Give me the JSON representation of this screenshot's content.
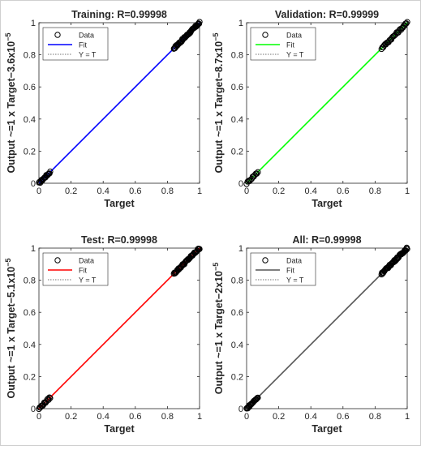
{
  "chart_data": [
    {
      "type": "scatter",
      "title": "Training: R=0.99998",
      "xlabel": "Target",
      "ylabel": "Output ~=1 x Target",
      "ylabel_offset": "−3.6",
      "ylabel_exp": "x10",
      "ylabel_exp_sup": "−5",
      "xlim": [
        0,
        1
      ],
      "ylim": [
        0,
        1
      ],
      "xticks": [
        "0",
        "0.2",
        "0.4",
        "0.6",
        "0.8",
        "1"
      ],
      "yticks": [
        "0",
        "0.2",
        "0.4",
        "0.6",
        "0.8",
        "1"
      ],
      "fit_color": "#0000ff",
      "legend": {
        "position": "top-left",
        "entries": [
          "Data",
          "Fit",
          "Y = T"
        ]
      },
      "fit_line": {
        "slope": 1,
        "intercept": -3.6e-05
      },
      "clusters": [
        {
          "x_range": [
            0,
            0.07
          ],
          "count": 18
        },
        {
          "x_range": [
            0.84,
            1
          ],
          "count": 50
        }
      ]
    },
    {
      "type": "scatter",
      "title": "Validation: R=0.99999",
      "xlabel": "Target",
      "ylabel": "Output ~=1 x Target",
      "ylabel_offset": "−8.7",
      "ylabel_exp": "x10",
      "ylabel_exp_sup": "−5",
      "xlim": [
        0,
        1
      ],
      "ylim": [
        0,
        1
      ],
      "xticks": [
        "0",
        "0.2",
        "0.4",
        "0.6",
        "0.8",
        "1"
      ],
      "yticks": [
        "0",
        "0.2",
        "0.4",
        "0.6",
        "0.8",
        "1"
      ],
      "fit_color": "#00ff00",
      "legend": {
        "position": "top-left",
        "entries": [
          "Data",
          "Fit",
          "Y = T"
        ]
      },
      "fit_line": {
        "slope": 1,
        "intercept": -8.7e-05
      },
      "clusters": [
        {
          "x_range": [
            0,
            0.07
          ],
          "count": 12
        },
        {
          "x_range": [
            0.84,
            1
          ],
          "count": 30
        }
      ]
    },
    {
      "type": "scatter",
      "title": "Test: R=0.99998",
      "xlabel": "Target",
      "ylabel": "Output ~=1 x Target",
      "ylabel_offset": "−5.1",
      "ylabel_exp": "x10",
      "ylabel_exp_sup": "−5",
      "xlim": [
        0,
        1
      ],
      "ylim": [
        0,
        1
      ],
      "xticks": [
        "0",
        "0.2",
        "0.4",
        "0.6",
        "0.8",
        "1"
      ],
      "yticks": [
        "0",
        "0.2",
        "0.4",
        "0.6",
        "0.8",
        "1"
      ],
      "fit_color": "#ff0000",
      "legend": {
        "position": "top-left",
        "entries": [
          "Data",
          "Fit",
          "Y = T"
        ]
      },
      "fit_line": {
        "slope": 1,
        "intercept": -5.1e-05
      },
      "clusters": [
        {
          "x_range": [
            0,
            0.07
          ],
          "count": 16
        },
        {
          "x_range": [
            0.84,
            1
          ],
          "count": 45
        }
      ]
    },
    {
      "type": "scatter",
      "title": "All: R=0.99998",
      "xlabel": "Target",
      "ylabel": "Output ~=1 x Target",
      "ylabel_offset": "−2",
      "ylabel_exp": "x10",
      "ylabel_exp_sup": "−5",
      "xlim": [
        0,
        1
      ],
      "ylim": [
        0,
        1
      ],
      "xticks": [
        "0",
        "0.2",
        "0.4",
        "0.6",
        "0.8",
        "1"
      ],
      "yticks": [
        "0",
        "0.2",
        "0.4",
        "0.6",
        "0.8",
        "1"
      ],
      "fit_color": "#555555",
      "legend": {
        "position": "top-left",
        "entries": [
          "Data",
          "Fit",
          "Y = T"
        ]
      },
      "fit_line": {
        "slope": 1,
        "intercept": -2e-05
      },
      "clusters": [
        {
          "x_range": [
            0,
            0.07
          ],
          "count": 20
        },
        {
          "x_range": [
            0.84,
            1
          ],
          "count": 55
        }
      ]
    }
  ]
}
